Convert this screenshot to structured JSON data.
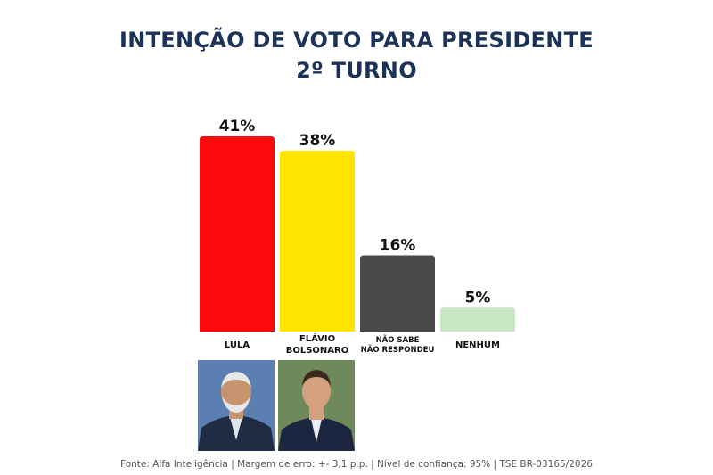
{
  "header": {
    "title_line1": "INTENÇÃO DE VOTO PARA PRESIDENTE",
    "title_line2": "2º TURNO"
  },
  "chart_data": {
    "type": "bar",
    "title": "INTENÇÃO DE VOTO PARA PRESIDENTE 2º TURNO",
    "categories": [
      "LULA",
      "FLÁVIO BOLSONARO",
      "NÃO SABE NÃO RESPONDEU",
      "NENHUM"
    ],
    "category_lines": [
      [
        "LULA"
      ],
      [
        "FLÁVIO",
        "BOLSONARO"
      ],
      [
        "NÃO SABE",
        "NÃO RESPONDEU"
      ],
      [
        "NENHUM"
      ]
    ],
    "values": [
      41,
      38,
      16,
      5
    ],
    "value_labels": [
      "41%",
      "38%",
      "16%",
      "5%"
    ],
    "colors": [
      "#fa0a0a",
      "#ffe400",
      "#4a4a4a",
      "#c8e6c4"
    ],
    "ylim": [
      0,
      41
    ],
    "grid": false,
    "legend": "none"
  },
  "photos": [
    {
      "name": "lula-photo",
      "background": "#5a7fb0",
      "suit": "#1f2c44",
      "skin": "#c79470",
      "hair": "#e8e8e8"
    },
    {
      "name": "flavio-photo",
      "background": "#6f8a5a",
      "suit": "#1c2640",
      "skin": "#d5a07e",
      "hair": "#3a2a1e"
    }
  ],
  "footer": {
    "text": "Fonte: Alfa Inteligência | Margem de erro: +- 3,1 p.p. | Nível de confiança: 95% | TSE BR-03165/2026"
  }
}
